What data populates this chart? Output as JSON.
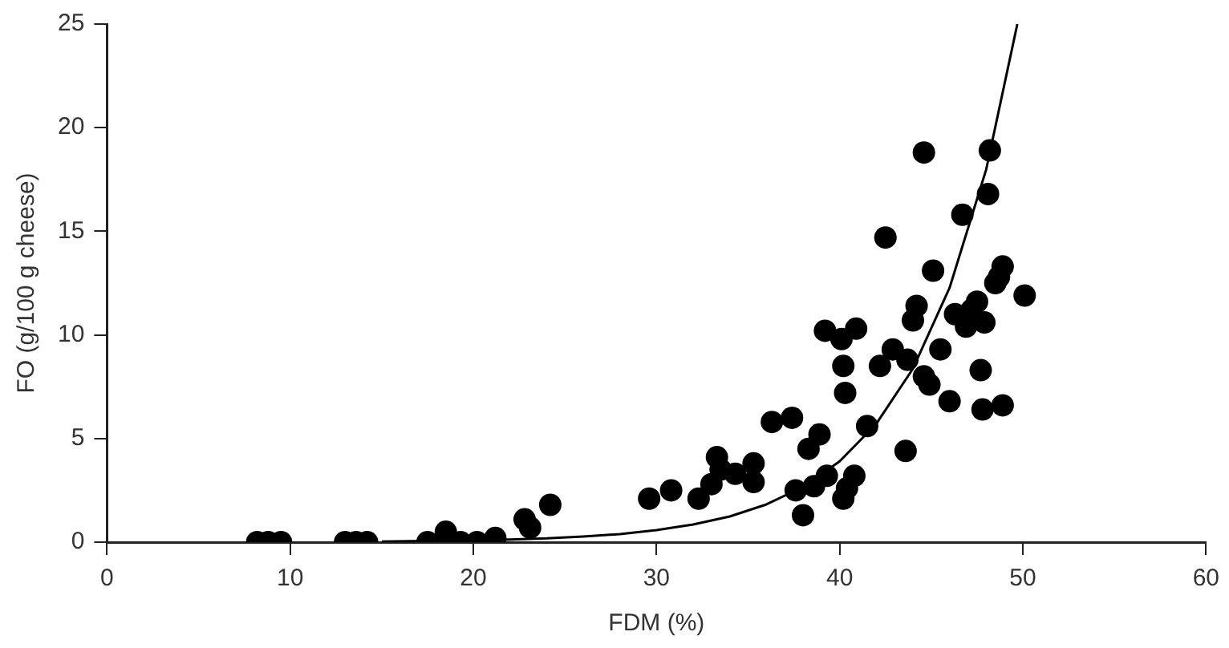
{
  "chart_data": {
    "type": "scatter",
    "xlabel": "FDM (%)",
    "ylabel": "FO (g/100 g cheese)",
    "xlim": [
      0,
      60
    ],
    "xticks": [
      0,
      10,
      20,
      30,
      40,
      50,
      60
    ],
    "ylim": [
      0,
      25
    ],
    "yticks": [
      0,
      5,
      10,
      15,
      20,
      25
    ],
    "grid": false,
    "legend": false,
    "marker": "circle",
    "series": [
      {
        "type": "scatter",
        "color": "#000000",
        "x": [
          8.2,
          8.8,
          9.5,
          13,
          13.6,
          14.2,
          17.5,
          18.5,
          19.3,
          20.2,
          21.2,
          22.8,
          23.1,
          24.2,
          29.6,
          30.8,
          32.3,
          33,
          33.3,
          33.5,
          34.3,
          35.3,
          35.3,
          36.3,
          37.4,
          37.6,
          38,
          38.3,
          38.6,
          38.9,
          39.3,
          39.2,
          40.1,
          40.2,
          40.3,
          40.4,
          40.2,
          40.8,
          40.9,
          41.5,
          42.2,
          42.5,
          42.9,
          43.6,
          43.7,
          44,
          44.2,
          44.6,
          44.6,
          44.9,
          45.1,
          45.5,
          46,
          46.3,
          46.7,
          46.9,
          47.2,
          47.5,
          47.7,
          47.8,
          47.9,
          48.1,
          48.2,
          48.5,
          48.7,
          48.9,
          48.9,
          50.1
        ],
        "values": [
          0,
          0,
          0,
          0,
          0,
          0,
          0,
          0.5,
          0,
          0,
          0.2,
          1.1,
          0.7,
          1.8,
          2.1,
          2.5,
          2.1,
          2.8,
          4.1,
          3.5,
          3.3,
          3.8,
          2.9,
          5.8,
          6,
          2.5,
          1.3,
          4.5,
          2.7,
          5.2,
          3.2,
          10.2,
          9.8,
          8.5,
          7.2,
          2.6,
          2.1,
          3.2,
          10.3,
          5.6,
          8.5,
          14.7,
          9.3,
          4.4,
          8.8,
          10.7,
          11.4,
          8,
          18.8,
          7.6,
          13.1,
          9.3,
          6.8,
          11,
          15.8,
          10.4,
          11.2,
          11.6,
          8.3,
          6.4,
          10.6,
          16.8,
          18.9,
          12.5,
          12.8,
          13.3,
          6.6,
          11.9
        ]
      },
      {
        "type": "line",
        "color": "#000000",
        "marker": "none",
        "line_style": "solid",
        "x": [
          15,
          20,
          22,
          24,
          26,
          28,
          30,
          32,
          34,
          36,
          38,
          40,
          42,
          44,
          46,
          48,
          49.7
        ],
        "values": [
          0.03,
          0.09,
          0.13,
          0.18,
          0.27,
          0.39,
          0.58,
          0.85,
          1.24,
          1.82,
          2.66,
          3.9,
          5.71,
          8.37,
          12.27,
          17.98,
          25
        ]
      }
    ]
  }
}
